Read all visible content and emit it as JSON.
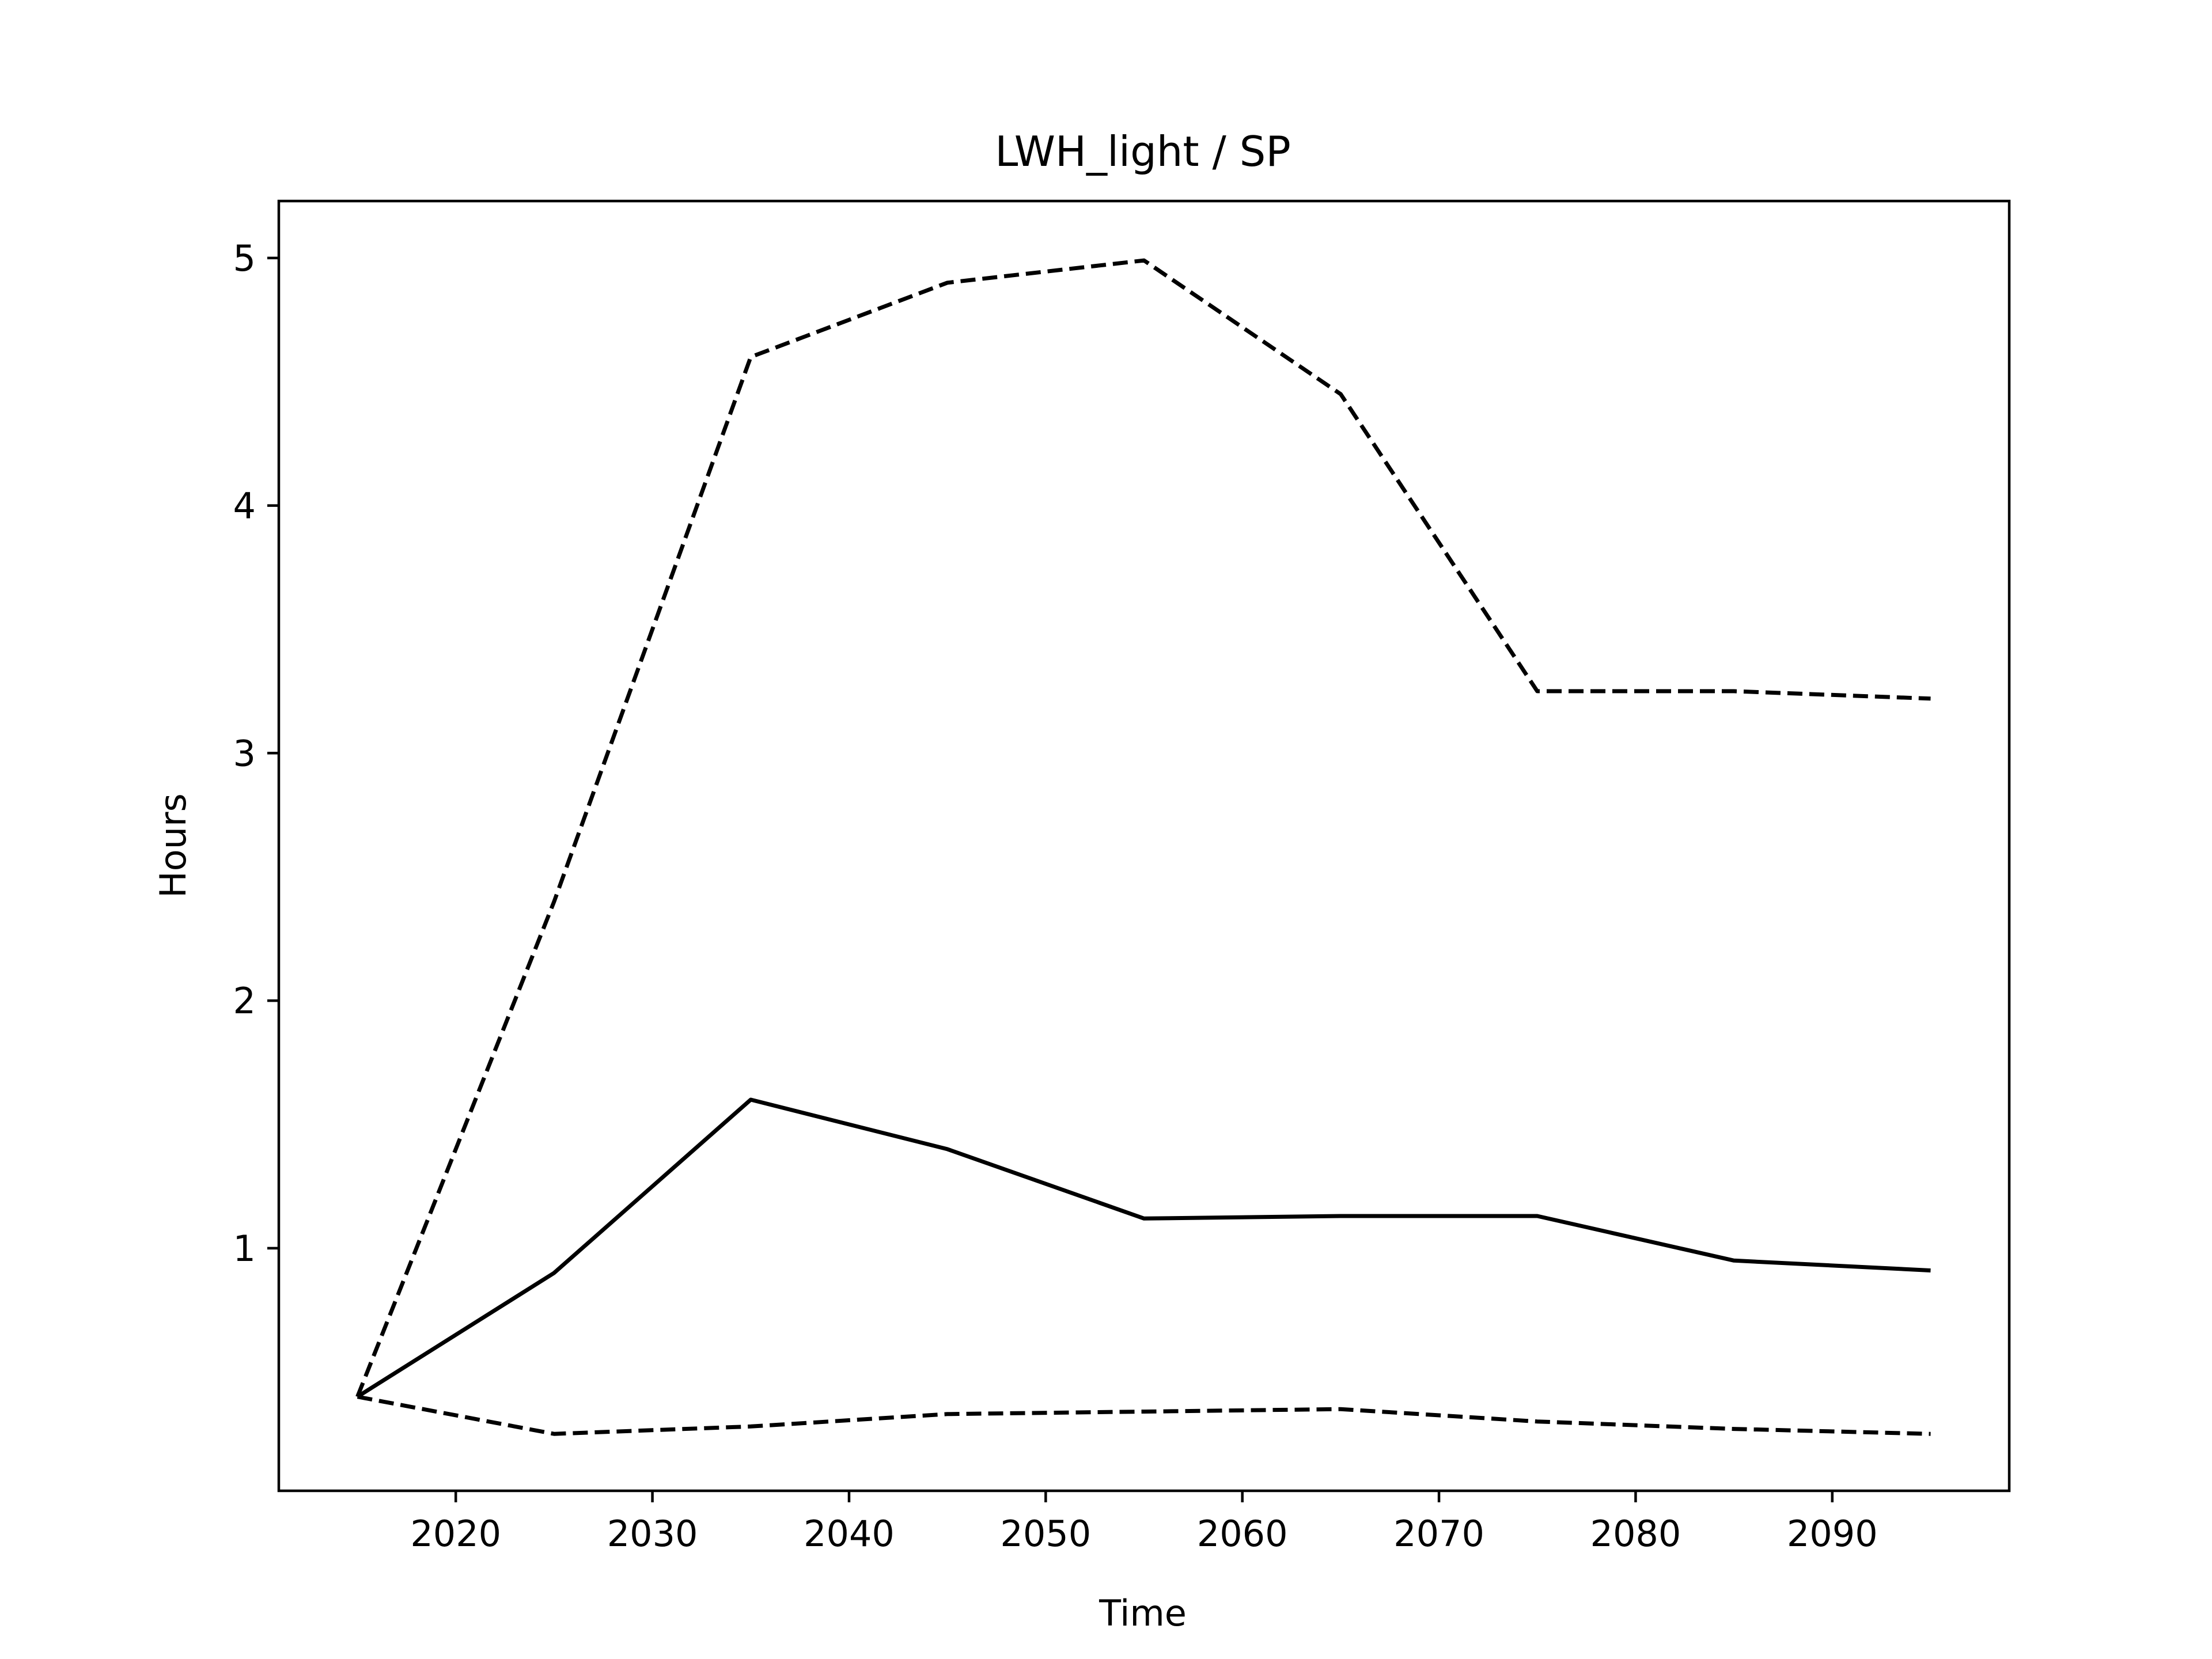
{
  "chart_data": {
    "type": "line",
    "title": "LWH_light / SP",
    "xlabel": "Time",
    "ylabel": "Hours",
    "xlim": [
      2011,
      2099
    ],
    "ylim": [
      0.02,
      5.23
    ],
    "grid": false,
    "legend": "none",
    "xticks": [
      2020,
      2030,
      2040,
      2050,
      2060,
      2070,
      2080,
      2090
    ],
    "xtick_labels": [
      "2020",
      "2030",
      "2040",
      "2050",
      "2060",
      "2070",
      "2080",
      "2090"
    ],
    "yticks": [
      1,
      2,
      3,
      4,
      5
    ],
    "ytick_labels": [
      "1",
      "2",
      "3",
      "4",
      "5"
    ],
    "x": [
      2015,
      2025,
      2035,
      2045,
      2055,
      2065,
      2075,
      2085,
      2095
    ],
    "series": [
      {
        "style": "dashed",
        "color": "#000000",
        "values": [
          0.4,
          2.4,
          4.6,
          4.9,
          4.99,
          4.45,
          3.25,
          3.25,
          3.22
        ]
      },
      {
        "style": "solid",
        "color": "#000000",
        "values": [
          0.4,
          0.9,
          1.6,
          1.4,
          1.12,
          1.13,
          1.13,
          0.95,
          0.91
        ]
      },
      {
        "style": "dashed",
        "color": "#000000",
        "values": [
          0.4,
          0.25,
          0.28,
          0.33,
          0.34,
          0.35,
          0.3,
          0.27,
          0.25
        ]
      }
    ]
  }
}
